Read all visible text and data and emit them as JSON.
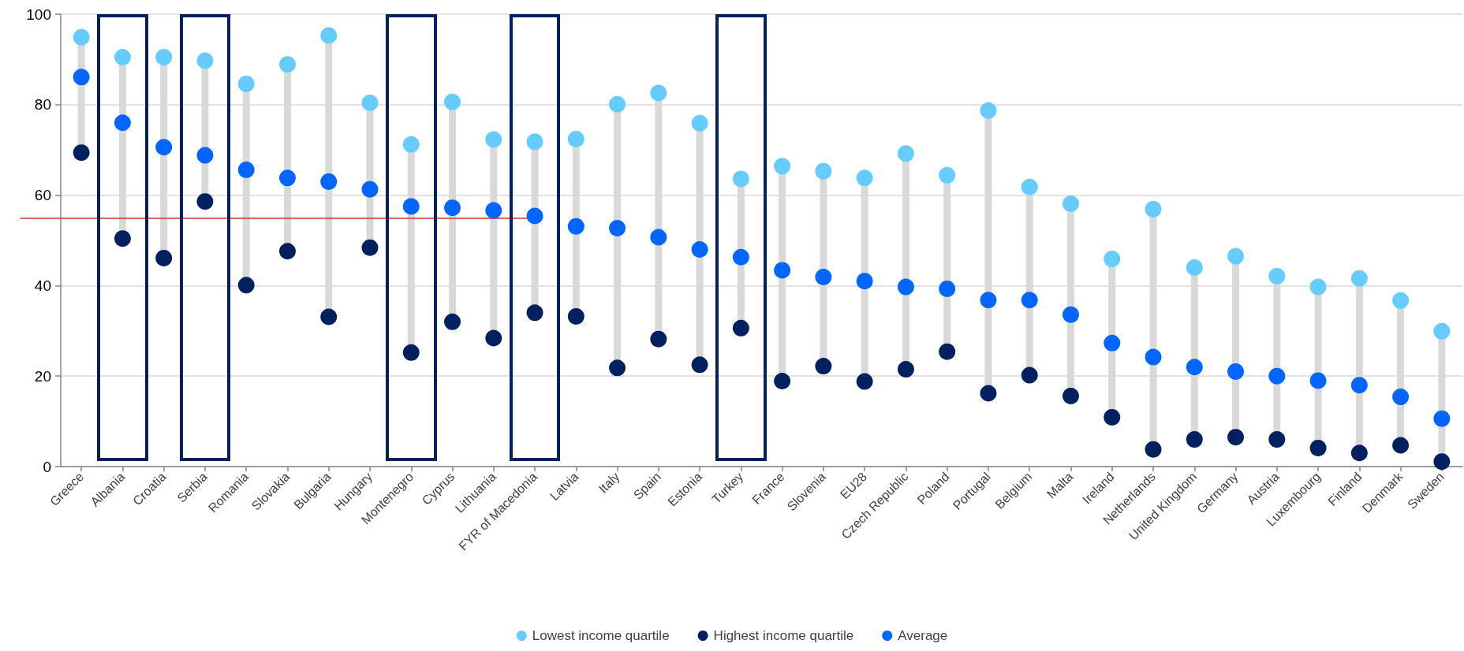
{
  "chart_data": {
    "type": "scatter",
    "categories": [
      "Greece",
      "Albania",
      "Croatia",
      "Serbia",
      "Romania",
      "Slovakia",
      "Bulgaria",
      "Hungary",
      "Montenegro",
      "Cyprus",
      "Lithuania",
      "FYR of Macedonia",
      "Latvia",
      "Italy",
      "Spain",
      "Estonia",
      "Turkey",
      "France",
      "Slovenia",
      "EU28",
      "Czech Republic",
      "Poland",
      "Portugal",
      "Belgium",
      "Malta",
      "Ireland",
      "Netherlands",
      "United Kingdom",
      "Germany",
      "Austria",
      "Luxembourg",
      "Finland",
      "Denmark",
      "Sweden"
    ],
    "series": [
      {
        "name": "Lowest income quartile",
        "color": "#66ccff",
        "values": [
          94.9,
          90.5,
          90.5,
          89.7,
          84.6,
          88.9,
          95.3,
          80.4,
          71.2,
          80.6,
          72.3,
          71.8,
          72.4,
          80.1,
          82.6,
          75.9,
          63.6,
          66.4,
          65.3,
          63.8,
          69.2,
          64.4,
          78.7,
          61.8,
          58.1,
          45.9,
          56.9,
          44.0,
          46.5,
          42.1,
          39.7,
          41.6,
          36.7,
          29.9
        ]
      },
      {
        "name": "Highest income quartile",
        "color": "#002060",
        "values": [
          69.4,
          50.4,
          46.1,
          58.6,
          40.1,
          47.6,
          33.1,
          48.4,
          25.2,
          32.0,
          28.4,
          34.0,
          33.2,
          21.8,
          28.2,
          22.5,
          30.6,
          18.9,
          22.2,
          18.8,
          21.5,
          25.4,
          16.2,
          20.2,
          15.6,
          10.9,
          3.8,
          6.0,
          6.5,
          6.0,
          4.1,
          3.0,
          4.7,
          1.1
        ]
      },
      {
        "name": "Average",
        "color": "#0066ff",
        "values": [
          86.1,
          76.0,
          70.6,
          68.8,
          65.6,
          63.8,
          63.0,
          61.3,
          57.5,
          57.2,
          56.6,
          55.4,
          53.1,
          52.7,
          50.7,
          48.0,
          46.3,
          43.4,
          41.9,
          41.0,
          39.7,
          39.3,
          36.8,
          36.8,
          33.6,
          27.3,
          24.2,
          22.0,
          21.0,
          20.0,
          19.0,
          18.0,
          15.4,
          10.6
        ]
      }
    ],
    "ylim": [
      0,
      100
    ],
    "yticks": [
      0,
      20,
      40,
      60,
      80,
      100
    ],
    "grid": "y",
    "legend": "bottom",
    "marker": "circle",
    "ref_lines": [
      {
        "axis": "y",
        "value": 55,
        "color": "#d9302c"
      }
    ]
  }
}
